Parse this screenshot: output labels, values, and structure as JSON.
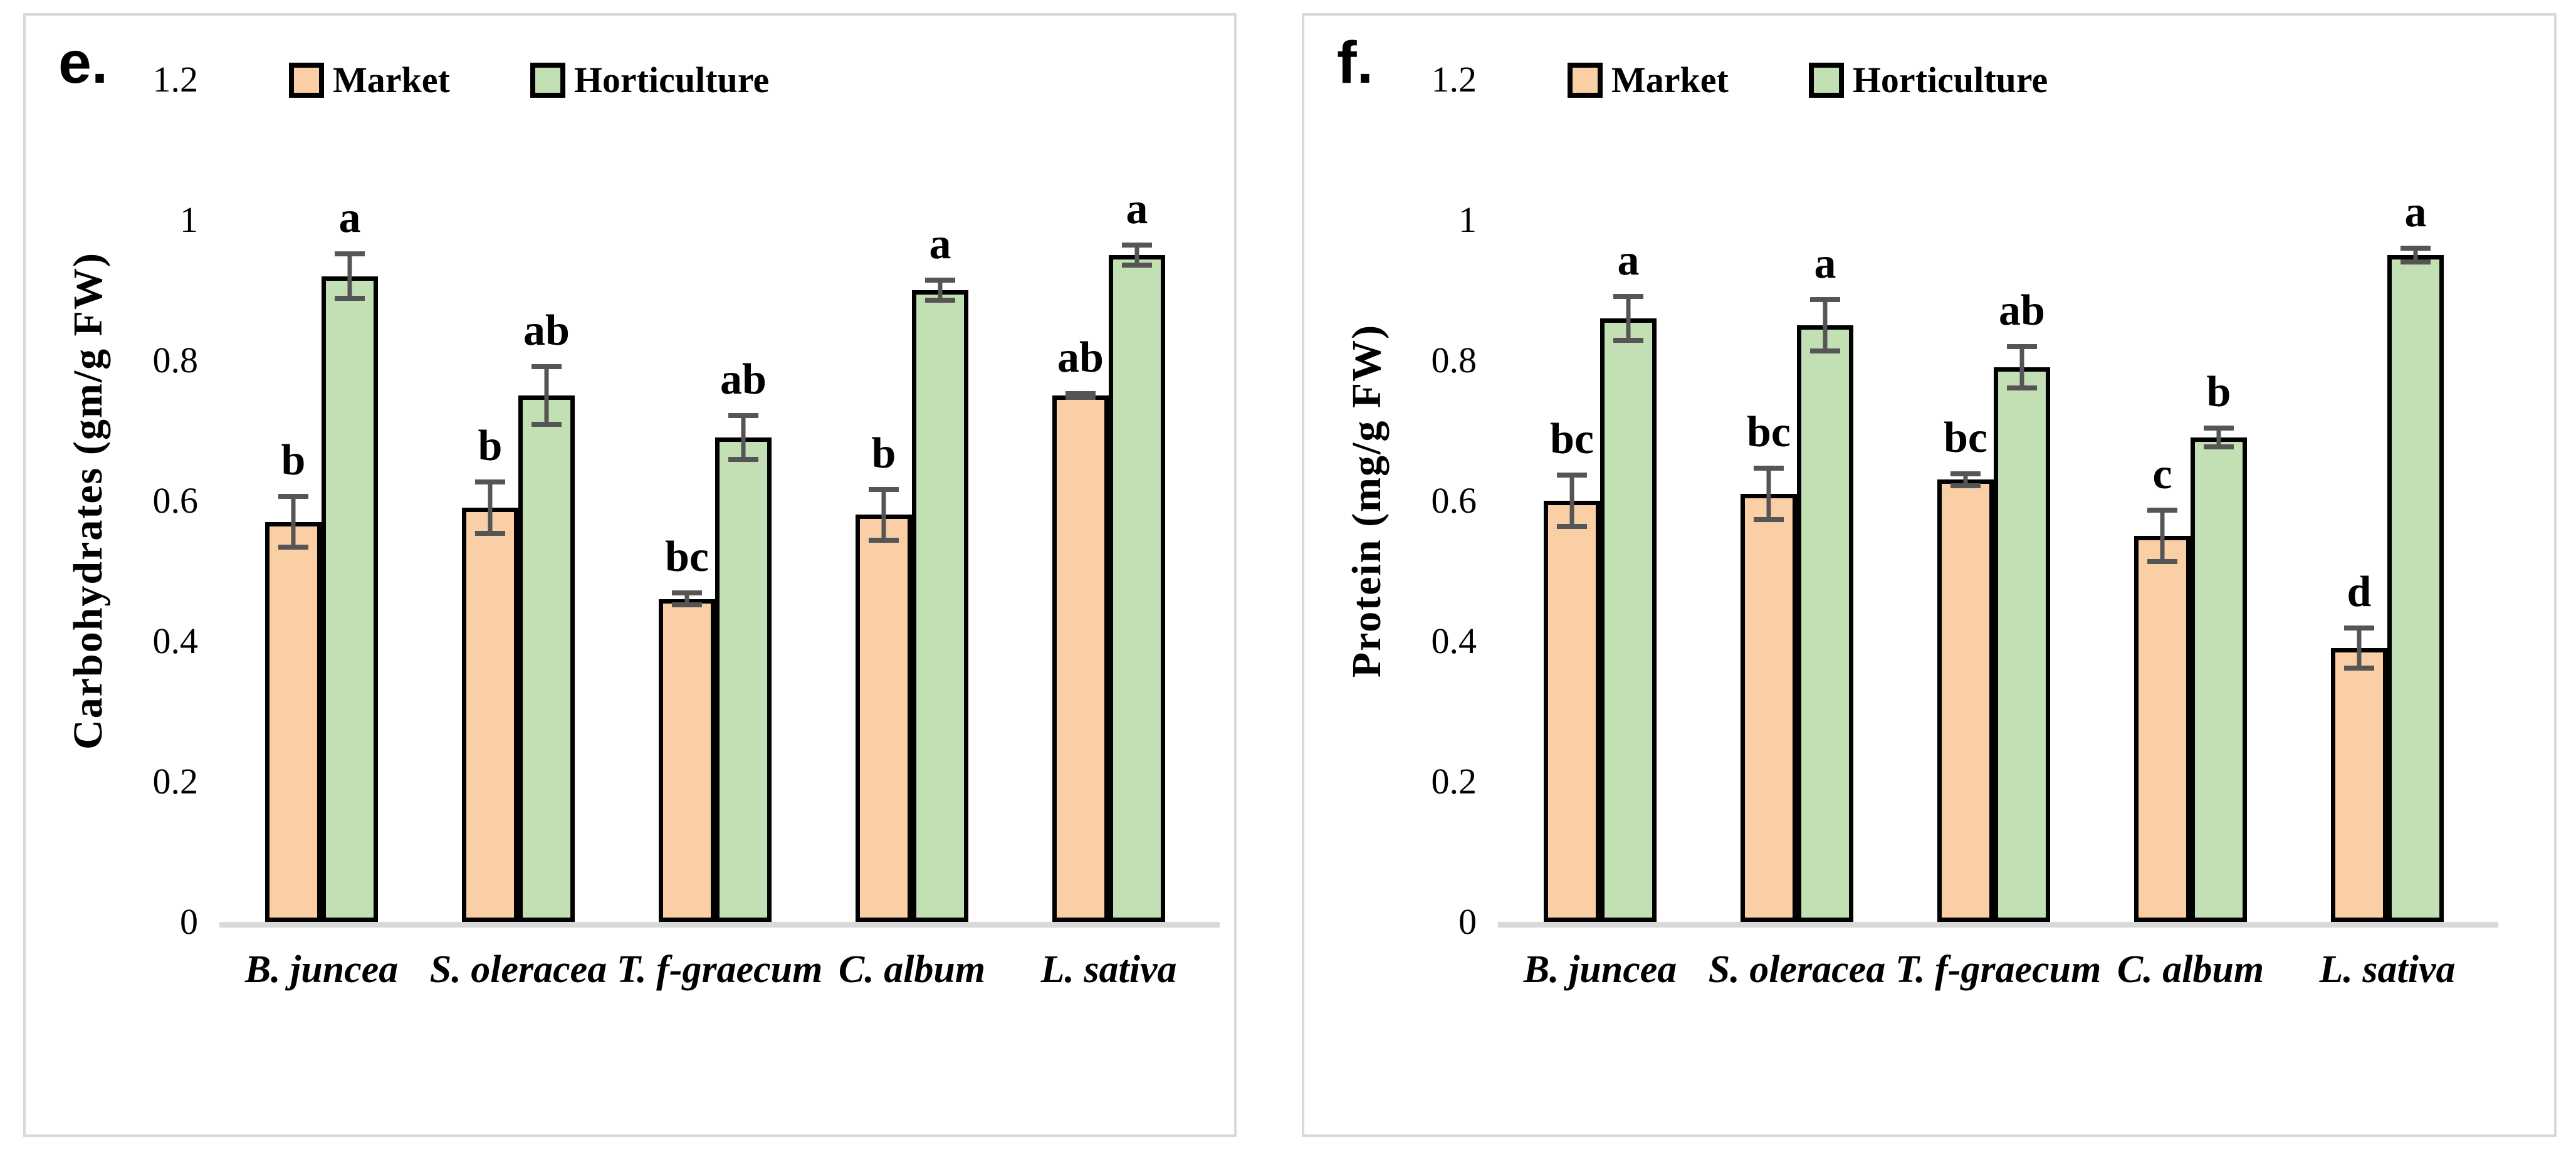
{
  "colors": {
    "market_fill": "#FBCFA6",
    "horticulture_fill": "#C2E0B4",
    "bar_border": "#000000",
    "error_bar": "#555555",
    "baseline": "#D9D9D9",
    "panel_border": "#D9D9D9",
    "panel_background": "#FFFFFF",
    "text": "#000000"
  },
  "chart_data": [
    {
      "type": "bar",
      "panel_label": "e.",
      "ylabel": "Carbohydrates (gm/g FW)",
      "xlabel": "",
      "categories": [
        "B. juncea",
        "S. oleracea",
        "T. f-graecum",
        "C. album",
        "L. sativa"
      ],
      "series": [
        {
          "name": "Market",
          "color": "#FBCFA6",
          "values": [
            0.57,
            0.59,
            0.46,
            0.58,
            0.75
          ],
          "errors": [
            0.04,
            0.04,
            0.012,
            0.04,
            0.006
          ],
          "letters": [
            "b",
            "b",
            "bc",
            "b",
            "ab"
          ]
        },
        {
          "name": "Horticulture",
          "color": "#C2E0B4",
          "values": [
            0.92,
            0.75,
            0.69,
            0.9,
            0.95
          ],
          "errors": [
            0.035,
            0.045,
            0.035,
            0.018,
            0.018
          ],
          "letters": [
            "a",
            "ab",
            "ab",
            "a",
            "a"
          ]
        }
      ],
      "ylim": [
        0,
        1.2
      ],
      "yticks": [
        0,
        0.2,
        0.4,
        0.6,
        0.8,
        1,
        1.2
      ],
      "legend_position": "top",
      "grid": false
    },
    {
      "type": "bar",
      "panel_label": "f.",
      "ylabel": "Protein (mg/g FW)",
      "xlabel": "",
      "categories": [
        "B. juncea",
        "S. oleracea",
        "T. f-graecum",
        "C. album",
        "L. sativa"
      ],
      "series": [
        {
          "name": "Market",
          "color": "#FBCFA6",
          "values": [
            0.6,
            0.61,
            0.63,
            0.55,
            0.39
          ],
          "errors": [
            0.04,
            0.04,
            0.012,
            0.04,
            0.032
          ],
          "letters": [
            "bc",
            "bc",
            "bc",
            "c",
            "d"
          ]
        },
        {
          "name": "Horticulture",
          "color": "#C2E0B4",
          "values": [
            0.86,
            0.85,
            0.79,
            0.69,
            0.95
          ],
          "errors": [
            0.035,
            0.04,
            0.033,
            0.017,
            0.013
          ],
          "letters": [
            "a",
            "a",
            "ab",
            "b",
            "a"
          ]
        }
      ],
      "ylim": [
        0,
        1.2
      ],
      "yticks": [
        0,
        0.2,
        0.4,
        0.6,
        0.8,
        1,
        1.2
      ],
      "legend_position": "top",
      "grid": false
    }
  ]
}
